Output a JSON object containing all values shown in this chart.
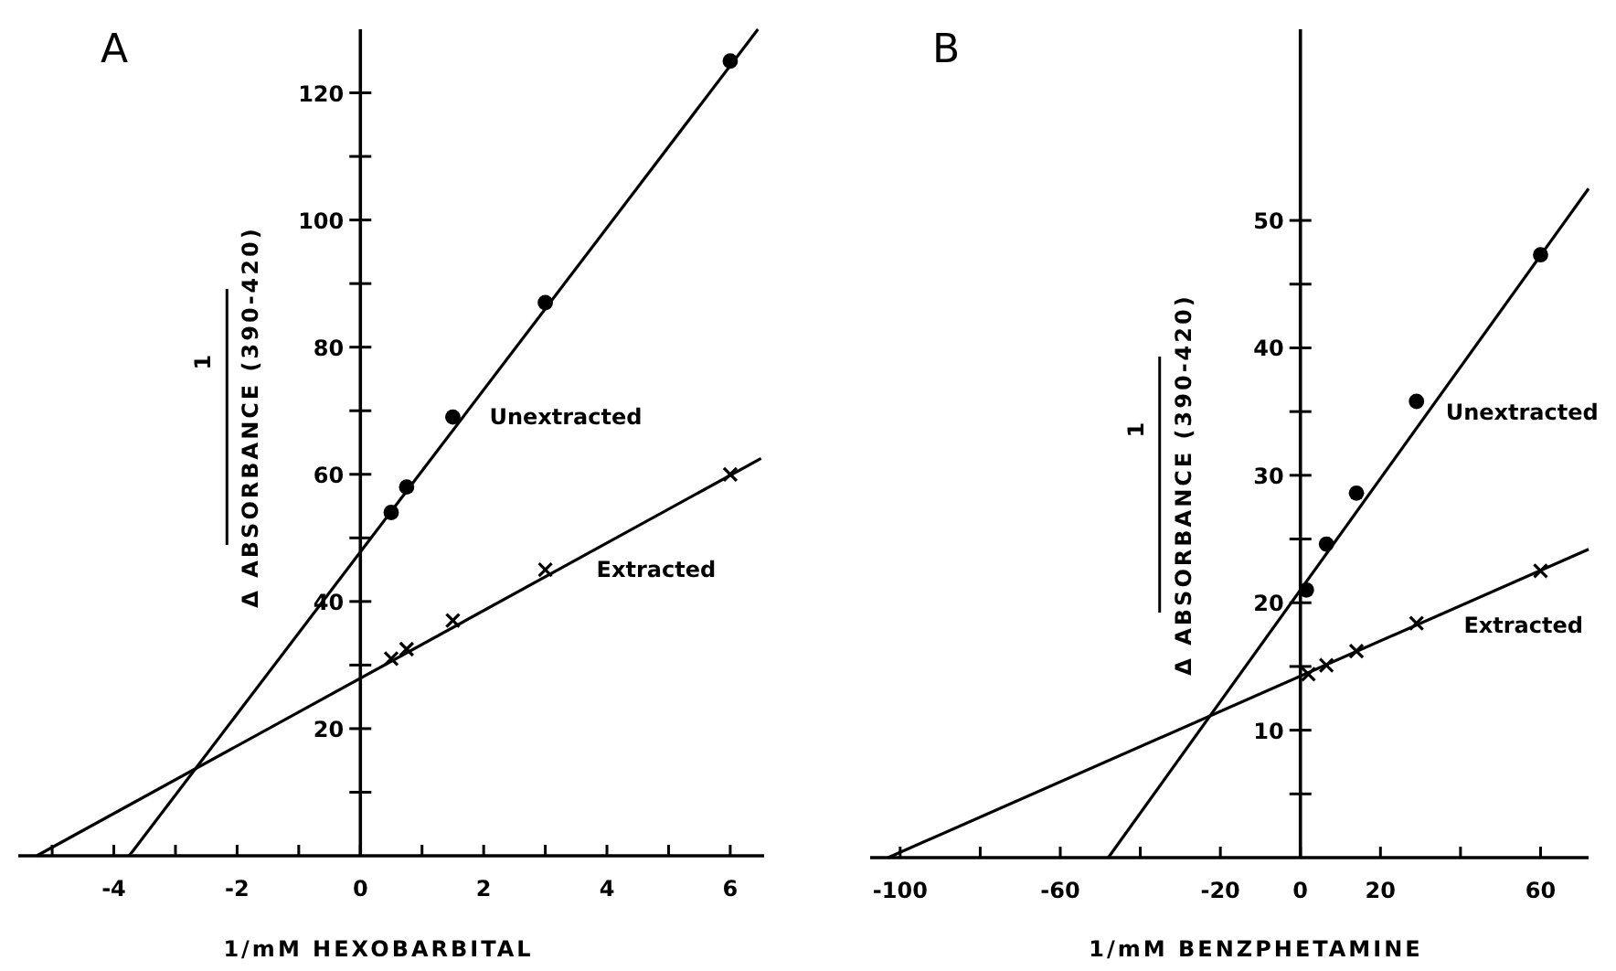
{
  "chart_data": [
    {
      "type": "scatter",
      "title": "A",
      "xlabel": "1/mM HEXOBARBITAL",
      "ylabel": "Δ ABSORBANCE (390-420)",
      "annotations": [
        "1"
      ],
      "grid": false,
      "xlim": [
        -5.55,
        6.55
      ],
      "ylim": [
        0,
        130
      ],
      "xticks": [
        {
          "value": -5,
          "label": null
        },
        -4,
        {
          "value": -3,
          "label": null
        },
        -2,
        {
          "value": -1,
          "label": null
        },
        0,
        {
          "value": 1,
          "label": null
        },
        2,
        {
          "value": 3,
          "label": null
        },
        4,
        {
          "value": 5,
          "label": null
        },
        6
      ],
      "yticks": [
        {
          "value": 10,
          "label": null
        },
        20,
        {
          "value": 30,
          "label": null
        },
        40,
        {
          "value": 50,
          "label": null
        },
        60,
        {
          "value": 70,
          "label": null
        },
        80,
        {
          "value": 90,
          "label": null
        },
        100,
        {
          "value": 110,
          "label": null
        },
        120
      ],
      "series": [
        {
          "name": "Unextracted",
          "type": "scatter",
          "marker": "circle",
          "color": "#000000",
          "x": [
            0.5,
            0.75,
            1.5,
            3,
            6
          ],
          "values": [
            54,
            58,
            69,
            87,
            125
          ]
        },
        {
          "name": "Extracted",
          "type": "scatter",
          "marker": "cross",
          "color": "#000000",
          "x": [
            0.5,
            0.75,
            1.5,
            3,
            6
          ],
          "values": [
            31,
            32.5,
            37,
            45,
            60
          ]
        },
        {
          "type": "line",
          "marker": "none",
          "color": "#000000",
          "x": [
            -3.75,
            6.45
          ],
          "values": [
            0,
            130
          ]
        },
        {
          "type": "line",
          "marker": "none",
          "color": "#000000",
          "x": [
            -5.25,
            6.5
          ],
          "values": [
            0,
            62.5
          ]
        }
      ]
    },
    {
      "type": "scatter",
      "title": "B",
      "xlabel": "1/mM BENZPHETAMINE",
      "ylabel": "Δ ABSORBANCE (390-420)",
      "annotations": [
        "1"
      ],
      "grid": false,
      "xlim": [
        -107.5,
        72
      ],
      "ylim": [
        0,
        65
      ],
      "xticks": [
        -100,
        {
          "value": -80,
          "label": null
        },
        -60,
        {
          "value": -40,
          "label": null
        },
        -20,
        0,
        20,
        {
          "value": 40,
          "label": null
        },
        60
      ],
      "yticks": [
        {
          "value": 5,
          "label": null
        },
        10,
        {
          "value": 15,
          "label": null
        },
        20,
        {
          "value": 25,
          "label": null
        },
        30,
        {
          "value": 35,
          "label": null
        },
        40,
        {
          "value": 45,
          "label": null
        },
        50
      ],
      "series": [
        {
          "name": "Unextracted",
          "type": "scatter",
          "marker": "circle",
          "color": "#000000",
          "x": [
            1.5,
            6.5,
            14,
            29,
            60
          ],
          "values": [
            21,
            24.6,
            28.6,
            35.8,
            47.3
          ]
        },
        {
          "name": "Extracted",
          "type": "scatter",
          "marker": "cross",
          "color": "#000000",
          "x": [
            2,
            6.5,
            14,
            29,
            60
          ],
          "values": [
            14.4,
            15.1,
            16.2,
            18.4,
            22.5
          ]
        },
        {
          "type": "line",
          "marker": "none",
          "color": "#000000",
          "x": [
            -48,
            72
          ],
          "values": [
            0,
            52.5
          ]
        },
        {
          "type": "line",
          "marker": "none",
          "color": "#000000",
          "x": [
            -103,
            72
          ],
          "values": [
            0,
            24.2
          ]
        }
      ]
    }
  ]
}
